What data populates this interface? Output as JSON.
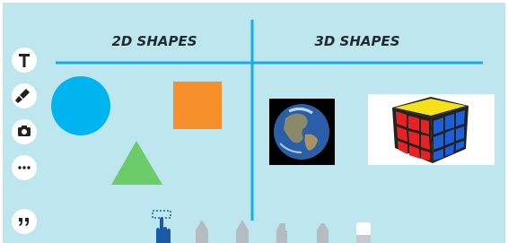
{
  "board": {
    "left_title": "2D SHAPES",
    "right_title": "3D SHAPES"
  }
}
